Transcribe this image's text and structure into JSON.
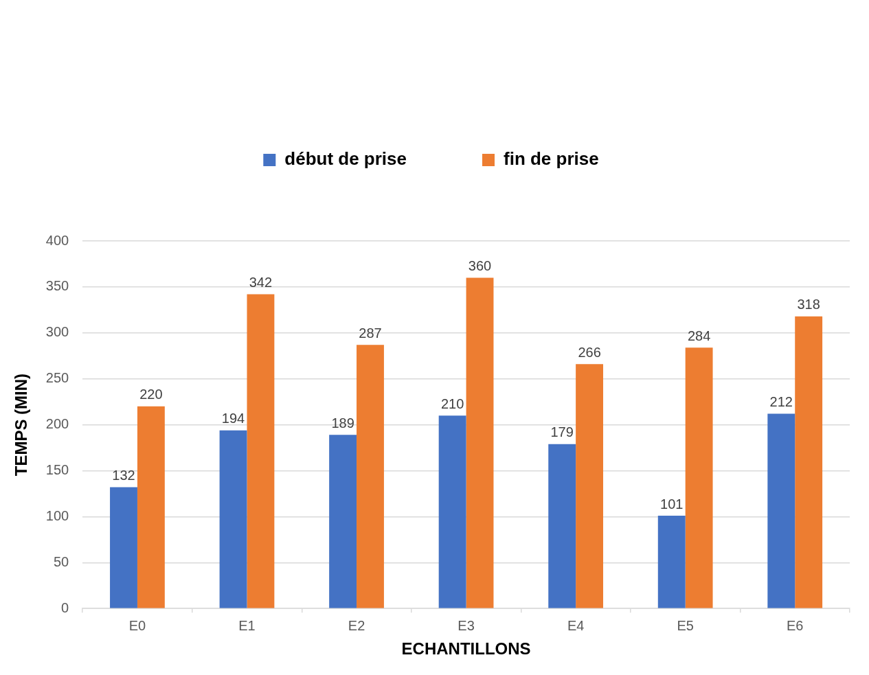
{
  "chart_data": {
    "type": "bar",
    "xlabel": "ECHANTILLONS",
    "ylabel": "TEMPS (MIN)",
    "categories": [
      "E0",
      "E1",
      "E2",
      "E3",
      "E4",
      "E5",
      "E6"
    ],
    "series": [
      {
        "name": "début de prise",
        "color": "#4472c4",
        "values": [
          132,
          194,
          189,
          210,
          179,
          101,
          212
        ]
      },
      {
        "name": "fin de prise",
        "color": "#ed7d31",
        "values": [
          220,
          342,
          287,
          360,
          266,
          284,
          318
        ]
      }
    ],
    "ylim": [
      0,
      400
    ],
    "yticks": [
      0,
      50,
      100,
      150,
      200,
      250,
      300,
      350,
      400
    ],
    "grid": "y",
    "legend": "top",
    "data_labels": true
  }
}
